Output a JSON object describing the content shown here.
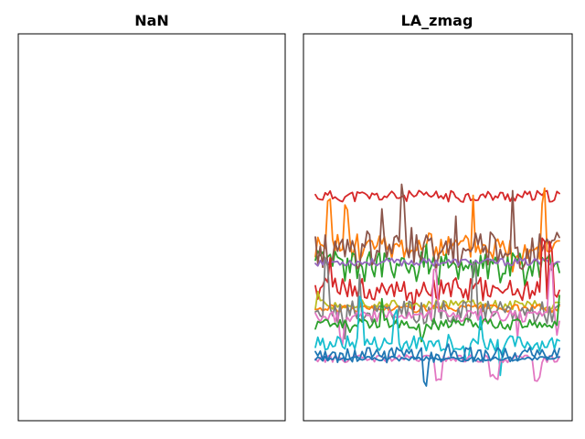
{
  "chart_data": [
    {
      "type": "line",
      "title": "NaN",
      "xlabel": "",
      "ylabel": "",
      "grid": false,
      "ticks_visible": false,
      "series": []
    },
    {
      "type": "line",
      "title": "LA_zmag",
      "xlabel": "",
      "ylabel": "",
      "grid": false,
      "ticks_visible": false,
      "ylim": [
        0,
        1
      ],
      "x": [
        0,
        100
      ],
      "series": [
        {
          "color": "#d62728",
          "base": 0.58,
          "amp": 0.015,
          "spikes": 3,
          "seed": 11
        },
        {
          "color": "#ff7f0e",
          "base": 0.45,
          "amp": 0.035,
          "spikes": 6,
          "seed": 23
        },
        {
          "color": "#2ca02c",
          "base": 0.4,
          "amp": 0.04,
          "spikes": 14,
          "seed": 37
        },
        {
          "color": "#8c564b",
          "base": 0.44,
          "amp": 0.05,
          "spikes": 16,
          "seed": 41
        },
        {
          "color": "#9467bd",
          "base": 0.41,
          "amp": 0.01,
          "spikes": 0,
          "seed": 53
        },
        {
          "color": "#d62728",
          "base": 0.34,
          "amp": 0.03,
          "spikes": 10,
          "seed": 61
        },
        {
          "color": "#bcbd22",
          "base": 0.3,
          "amp": 0.012,
          "spikes": 2,
          "seed": 71
        },
        {
          "color": "#ff7f0e",
          "base": 0.29,
          "amp": 0.01,
          "spikes": 1,
          "seed": 79
        },
        {
          "color": "#7f7f7f",
          "base": 0.28,
          "amp": 0.03,
          "spikes": 8,
          "seed": 83
        },
        {
          "color": "#e377c2",
          "base": 0.27,
          "amp": 0.015,
          "spikes": 4,
          "seed": 89
        },
        {
          "color": "#2ca02c",
          "base": 0.25,
          "amp": 0.015,
          "spikes": 3,
          "seed": 97
        },
        {
          "color": "#17becf",
          "base": 0.2,
          "amp": 0.02,
          "spikes": 5,
          "seed": 101
        },
        {
          "color": "#e377c2",
          "base": 0.16,
          "amp": 0.01,
          "dips": true,
          "spikes": 0,
          "seed": 107
        },
        {
          "color": "#1f77b4",
          "base": 0.17,
          "amp": 0.02,
          "spikes": 3,
          "seed": 113
        },
        {
          "color": "#1f77b4",
          "base": 0.16,
          "amp": 0.006,
          "spikes": 0,
          "seed": 127
        }
      ]
    }
  ]
}
